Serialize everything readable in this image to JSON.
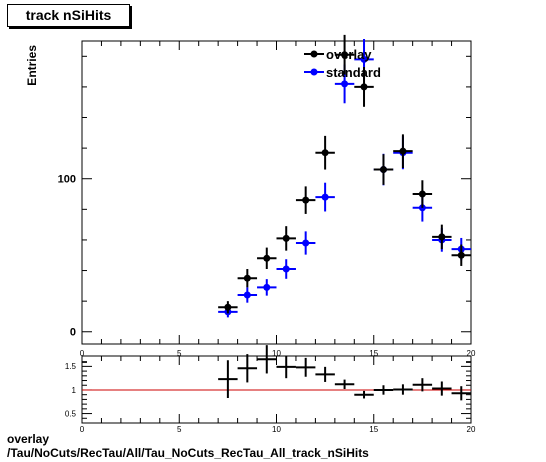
{
  "title": "track nSiHits",
  "footer": {
    "line1": "overlay",
    "line2": "/Tau/NoCuts/RecTau/All/Tau_NoCuts_RecTau_All_track_nSiHits"
  },
  "colors": {
    "overlay": "#000000",
    "standard": "#0000ff",
    "ratio_line": "#cc0000"
  },
  "chart_data": [
    {
      "type": "scatter",
      "ylabel": "Entries",
      "xlim": [
        0,
        20
      ],
      "ylim": [
        -8,
        190
      ],
      "x_ticks": [
        0,
        5,
        10,
        15,
        20
      ],
      "y_ticks": [
        0,
        100
      ],
      "grid": false,
      "legend_position": "top-center",
      "series": [
        {
          "name": "overlay",
          "x": [
            7.5,
            8.5,
            9.5,
            10.5,
            11.5,
            12.5,
            13.5,
            14.5,
            15.5,
            16.5,
            17.5,
            18.5,
            19.5
          ],
          "values": [
            16,
            35,
            48,
            61,
            86,
            117,
            181,
            160,
            106,
            118,
            90,
            62,
            50
          ],
          "errors": [
            4,
            6,
            7,
            8,
            9,
            11,
            13,
            13,
            10,
            11,
            9,
            8,
            7
          ]
        },
        {
          "name": "standard",
          "x": [
            7.5,
            8.5,
            9.5,
            10.5,
            11.5,
            12.5,
            13.5,
            14.5,
            15.5,
            16.5,
            17.5,
            18.5,
            19.5
          ],
          "values": [
            13,
            24,
            29,
            41,
            58,
            88,
            162,
            178,
            106,
            117,
            81,
            60,
            54
          ],
          "errors": [
            3.6,
            5,
            5.4,
            6.4,
            7.6,
            9.4,
            12.7,
            13.3,
            10.3,
            10.8,
            9,
            7.7,
            7.3
          ]
        }
      ]
    },
    {
      "type": "scatter",
      "xlim": [
        0,
        20
      ],
      "ylim": [
        0.3,
        1.72
      ],
      "x_ticks": [
        0,
        5,
        10,
        15,
        20
      ],
      "y_ticks": [
        0.5,
        1,
        1.5
      ],
      "reference_line": 1,
      "series": [
        {
          "name": "ratio",
          "x": [
            7.5,
            8.5,
            9.5,
            10.5,
            11.5,
            12.5,
            13.5,
            14.5,
            15.5,
            16.5,
            17.5,
            18.5,
            19.5
          ],
          "values": [
            1.23,
            1.46,
            1.65,
            1.49,
            1.48,
            1.33,
            1.12,
            0.9,
            1.0,
            1.01,
            1.11,
            1.03,
            0.93
          ],
          "errors": [
            0.4,
            0.3,
            0.3,
            0.24,
            0.2,
            0.16,
            0.1,
            0.08,
            0.1,
            0.11,
            0.14,
            0.15,
            0.15
          ]
        }
      ]
    }
  ]
}
